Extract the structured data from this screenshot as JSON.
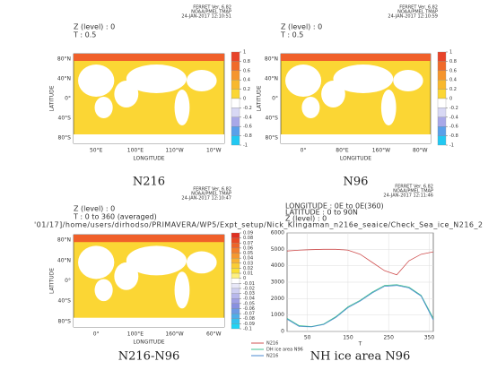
{
  "chart_data": [
    {
      "type": "map",
      "ferret": [
        "FERRET Ver. 6.82",
        "NOAA/PMEL TMAP",
        "24-JAN-2017 12:10:51"
      ],
      "header": [
        "Z (level) : 0",
        "T : 0.5"
      ],
      "xlabel": "LONGITUDE",
      "ylabel": "LATITUDE",
      "xtick_labels": [
        "50°E",
        "100°E",
        "110°W",
        "10°W"
      ],
      "ytick_labels": [
        "80°N",
        "40°N",
        "0°",
        "40°S",
        "80°S"
      ],
      "clim": [
        -1,
        1
      ],
      "cticks": [
        1,
        0.8,
        0.6,
        0.4,
        0.2,
        0,
        -0.2,
        -0.4,
        -0.6,
        -0.8,
        -1
      ],
      "colors": [
        "#e8442a",
        "#f06a2a",
        "#f5952e",
        "#f8b82e",
        "#fbd634",
        "#ffffff",
        "#d8d8f4",
        "#a8a8e8",
        "#5aa0ea",
        "#22c8f2"
      ],
      "caption": "N216"
    },
    {
      "type": "map",
      "ferret": [
        "FERRET Ver. 6.82",
        "NOAA/PMEL TMAP",
        "24-JAN-2017 12:10:59"
      ],
      "header": [
        "Z (level) : 0",
        "T : 0.5"
      ],
      "xlabel": "LONGITUDE",
      "ylabel": "LATITUDE",
      "xtick_labels": [
        "0°",
        "80°E",
        "160°W",
        "80°W"
      ],
      "ytick_labels": [
        "80°N",
        "40°N",
        "0°",
        "40°S",
        "80°S"
      ],
      "clim": [
        -1,
        1
      ],
      "cticks": [
        1,
        0.8,
        0.6,
        0.4,
        0.2,
        0,
        -0.2,
        -0.4,
        -0.6,
        -0.8,
        -1
      ],
      "colors": [
        "#e8442a",
        "#f06a2a",
        "#f5952e",
        "#f8b82e",
        "#fbd634",
        "#ffffff",
        "#d8d8f4",
        "#a8a8e8",
        "#5aa0ea",
        "#22c8f2"
      ],
      "caption": "N96"
    },
    {
      "type": "map",
      "ferret": [
        "FERRET Ver. 6.82",
        "NOAA/PMEL TMAP",
        "24-JAN-2017 12:10:47"
      ],
      "header": [
        "Z (level) : 0",
        "T : 0 to 360 (averaged)"
      ],
      "path": "'01/17]/home/users/dirhodso/PRIMAVERA/WP5/Expt_setup/Nick_Klingaman_n216e_seaice/Check_Sea_ice_N216_2",
      "xlabel": "LONGITUDE",
      "ylabel": "LATITUDE",
      "xtick_labels": [
        "0°",
        "100°E",
        "160°W",
        "60°W"
      ],
      "ytick_labels": [
        "80°N",
        "40°N",
        "0°",
        "40°S",
        "80°S"
      ],
      "clim": [
        -0.1,
        0.09
      ],
      "cticks": [
        0.09,
        0.08,
        0.07,
        0.06,
        0.05,
        0.04,
        0.03,
        0.02,
        0.01,
        0,
        -0.01,
        -0.02,
        -0.03,
        -0.04,
        -0.05,
        -0.06,
        -0.07,
        -0.08,
        -0.09,
        -0.1
      ],
      "colors": [
        "#e03020",
        "#e84a24",
        "#ee6428",
        "#f27e2c",
        "#f59830",
        "#f8b232",
        "#facc34",
        "#fbe036",
        "#fdf080",
        "#ffffff",
        "#e8e8f8",
        "#d0d0f2",
        "#b8b8ec",
        "#a0a0e6",
        "#8890e0",
        "#6c9ae4",
        "#50aee8",
        "#34c2ee",
        "#20d4f4"
      ],
      "caption": "N216-N96"
    },
    {
      "type": "line",
      "ferret": [
        "FERRET Ver. 6.82",
        "NOAA/PMEL TMAP",
        "24-JAN-2017 12:11:46"
      ],
      "header": [
        "LONGITUDE : 0E to 0E(360)",
        "LATITUDE : 0 to 90N",
        "Z (level) : 0"
      ],
      "xlabel": "T",
      "xlim": [
        0,
        360
      ],
      "xticks": [
        50,
        150,
        250,
        350
      ],
      "ylim": [
        0,
        6000
      ],
      "yticks": [
        0,
        1000,
        2000,
        3000,
        4000,
        5000,
        6000
      ],
      "grid": true,
      "x": [
        0,
        30,
        60,
        90,
        120,
        150,
        180,
        210,
        240,
        270,
        300,
        330,
        360
      ],
      "series": [
        {
          "name": "N216",
          "color": "#d05050",
          "values": [
            4900,
            4950,
            4980,
            5000,
            5000,
            4950,
            4700,
            4200,
            3700,
            3450,
            4300,
            4700,
            4850
          ]
        },
        {
          "name": "DH ice area N96",
          "color": "#40c090",
          "values": [
            800,
            350,
            300,
            450,
            900,
            1500,
            1900,
            2400,
            2800,
            2850,
            2700,
            2200,
            800
          ]
        },
        {
          "name": "N216",
          "color": "#4a8ad0",
          "values": [
            750,
            300,
            280,
            420,
            850,
            1450,
            1850,
            2350,
            2750,
            2800,
            2650,
            2150,
            700
          ]
        }
      ],
      "caption": "NH ice area N96"
    }
  ]
}
